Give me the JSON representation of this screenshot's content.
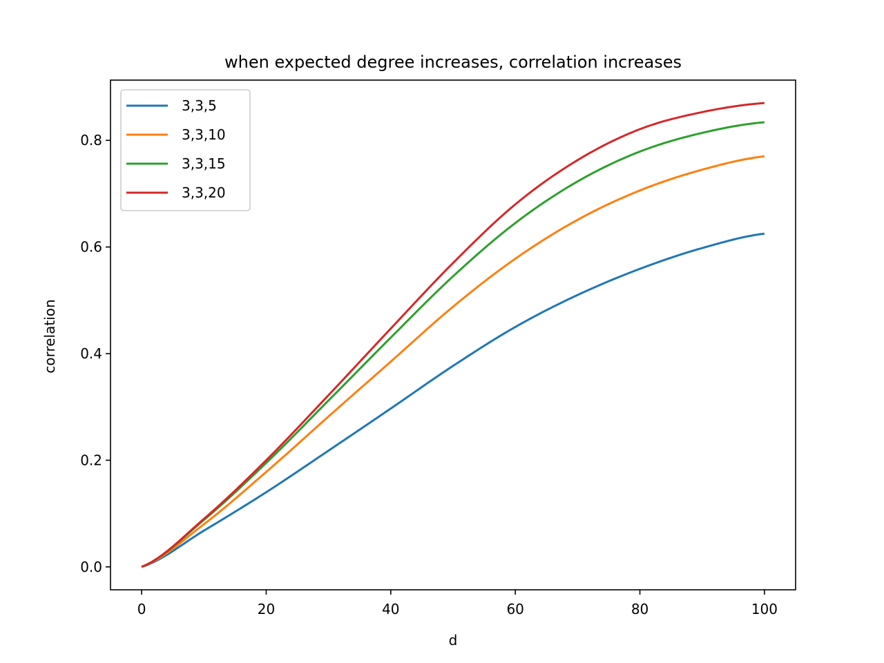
{
  "chart_data": {
    "type": "line",
    "title": "when expected degree increases, correlation increases",
    "xlabel": "d",
    "ylabel": "correlation",
    "xlim": [
      -5,
      105
    ],
    "ylim": [
      -0.043,
      0.913
    ],
    "x_ticks": [
      0,
      20,
      40,
      60,
      80,
      100
    ],
    "x_tick_labels": [
      "0",
      "20",
      "40",
      "60",
      "80",
      "100"
    ],
    "y_ticks": [
      0.0,
      0.2,
      0.4,
      0.6,
      0.8
    ],
    "y_tick_labels": [
      "0.0",
      "0.2",
      "0.4",
      "0.6",
      "0.8"
    ],
    "grid": false,
    "legend_position": "upper-left",
    "x": [
      0,
      10,
      20,
      30,
      40,
      50,
      60,
      70,
      80,
      90,
      100
    ],
    "series": [
      {
        "name": "3,3,5",
        "color": "#1f77b4",
        "values": [
          0.0,
          0.068,
          0.14,
          0.218,
          0.297,
          0.377,
          0.45,
          0.51,
          0.559,
          0.598,
          0.625
        ]
      },
      {
        "name": "3,3,10",
        "color": "#ff7f0e",
        "values": [
          0.0,
          0.08,
          0.178,
          0.282,
          0.385,
          0.488,
          0.578,
          0.651,
          0.706,
          0.745,
          0.77
        ]
      },
      {
        "name": "3,3,15",
        "color": "#2ca02c",
        "values": [
          0.0,
          0.088,
          0.195,
          0.312,
          0.43,
          0.545,
          0.645,
          0.723,
          0.779,
          0.814,
          0.834
        ]
      },
      {
        "name": "3,3,20",
        "color": "#d62728",
        "values": [
          0.0,
          0.09,
          0.2,
          0.322,
          0.447,
          0.57,
          0.68,
          0.763,
          0.821,
          0.853,
          0.87
        ]
      }
    ]
  }
}
